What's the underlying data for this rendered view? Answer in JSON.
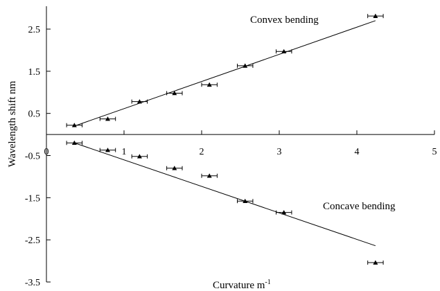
{
  "chart_data": {
    "type": "scatter",
    "xlabel": "Curvature m",
    "xlabel_superscript": "-1",
    "ylabel": "Wavelength shift nm",
    "xlim": [
      0,
      5
    ],
    "ylim": [
      -3.5,
      3
    ],
    "x_ticks": [
      0,
      1,
      2,
      3,
      4,
      5
    ],
    "x_tick_labels": [
      "0",
      "1",
      "2",
      "3",
      "4",
      "5"
    ],
    "y_ticks": [
      2.5,
      1.5,
      0.5,
      -0.5,
      -1.5,
      -2.5,
      -3.5
    ],
    "y_tick_labels": [
      "2.5",
      "1.5",
      "0.5",
      "-0.5",
      "-1.5",
      "-2.5",
      "-3.5"
    ],
    "grid": false,
    "series": [
      {
        "name": "Convex bending",
        "marker": "triangle",
        "x": [
          0.36,
          0.79,
          1.2,
          1.65,
          2.1,
          2.56,
          3.06,
          4.24
        ],
        "y": [
          0.22,
          0.37,
          0.78,
          0.98,
          1.18,
          1.63,
          1.97,
          2.81
        ],
        "x_error": 0.1,
        "fit": {
          "x": [
            0.36,
            4.24
          ],
          "y": [
            0.2,
            2.7
          ]
        }
      },
      {
        "name": "Concave bending",
        "marker": "triangle",
        "x": [
          0.36,
          0.79,
          1.2,
          1.65,
          2.1,
          2.56,
          3.06,
          4.24
        ],
        "y": [
          -0.2,
          -0.37,
          -0.52,
          -0.8,
          -0.98,
          -1.58,
          -1.85,
          -3.04
        ],
        "x_error": 0.1,
        "fit": {
          "x": [
            0.36,
            4.24
          ],
          "y": [
            -0.2,
            -2.64
          ]
        }
      }
    ],
    "annotations": [
      {
        "text": "Convex bending",
        "x": 1.0,
        "y": 1.0
      },
      {
        "text": "Concave bending",
        "x": 1.0,
        "y": 0.0
      }
    ]
  }
}
